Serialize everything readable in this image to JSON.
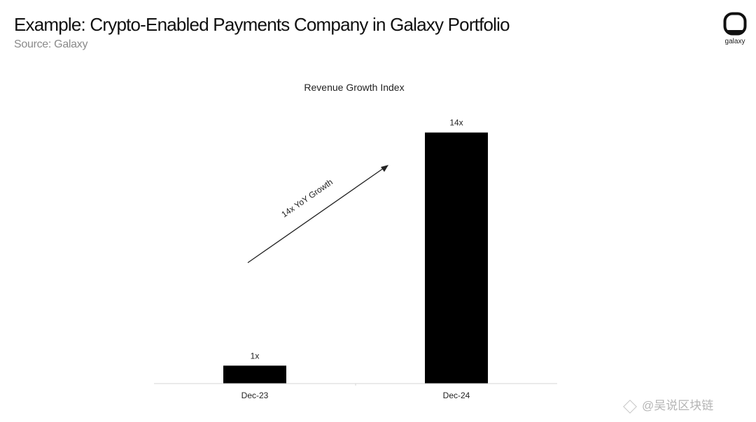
{
  "header": {
    "title": "Example: Crypto-Enabled Payments Company in Galaxy Portfolio",
    "source": "Source: Galaxy"
  },
  "logo": {
    "icon": "galaxy-logo-icon",
    "text": "galaxy"
  },
  "watermark": {
    "text": "@吴说区块链",
    "icon": "diamond-watermark-icon"
  },
  "colors": {
    "bar": "#000000",
    "axis": "#d4d4d4",
    "text": "#222222",
    "arrow": "#222222"
  },
  "chart_data": {
    "type": "bar",
    "title": "Revenue Growth Index",
    "categories": [
      "Dec-23",
      "Dec-24"
    ],
    "values": [
      1,
      14
    ],
    "data_labels": [
      "1x",
      "14x"
    ],
    "annotation": "14x YoY Growth",
    "ylim": [
      0,
      15
    ],
    "grid": false,
    "legend": "none"
  }
}
